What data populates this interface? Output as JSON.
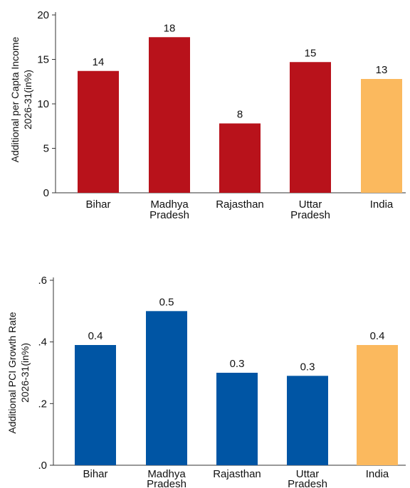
{
  "chart_data": [
    {
      "type": "bar",
      "categories": [
        "Bihar",
        "Madhya Pradesh",
        "Rajasthan",
        "Uttar Pradesh",
        "India"
      ],
      "category_lines": [
        [
          "Bihar"
        ],
        [
          "Madhya",
          "Pradesh"
        ],
        [
          "Rajasthan"
        ],
        [
          "Uttar",
          "Pradesh"
        ],
        [
          "India"
        ]
      ],
      "values": [
        14,
        18,
        8,
        15,
        13
      ],
      "exact_values": [
        13.7,
        17.5,
        7.8,
        14.7,
        12.8
      ],
      "value_labels": [
        "14",
        "18",
        "8",
        "15",
        "13"
      ],
      "ylabel_lines": [
        "Additional per Capta Income",
        "2026-31(in%)"
      ],
      "ylim": [
        0,
        20
      ],
      "yticks": [
        0,
        5,
        10,
        15,
        20
      ],
      "ytick_labels": [
        "0",
        "5",
        "10",
        "15",
        "20"
      ],
      "bar_colors": [
        "#b8121b",
        "#b8121b",
        "#b8121b",
        "#b8121b",
        "#fbb95e"
      ],
      "grid": false,
      "legend": "none"
    },
    {
      "type": "bar",
      "categories": [
        "Bihar",
        "Madhya Pradesh",
        "Rajasthan",
        "Uttar Pradesh",
        "India"
      ],
      "category_lines": [
        [
          "Bihar"
        ],
        [
          "Madhya",
          "Pradesh"
        ],
        [
          "Rajasthan"
        ],
        [
          "Uttar",
          "Pradesh"
        ],
        [
          "India"
        ]
      ],
      "values": [
        0.4,
        0.5,
        0.3,
        0.3,
        0.4
      ],
      "exact_values": [
        0.39,
        0.5,
        0.3,
        0.29,
        0.39
      ],
      "value_labels": [
        "0.4",
        "0.5",
        "0.3",
        "0.3",
        "0.4"
      ],
      "ylabel_lines": [
        "Additional PCI Growth Rate",
        "2026-31(in%)"
      ],
      "ylim": [
        0,
        0.6
      ],
      "yticks": [
        0,
        0.2,
        0.4,
        0.6
      ],
      "ytick_labels": [
        ".0",
        ".2",
        ".4",
        ".6"
      ],
      "bar_colors": [
        "#0055a4",
        "#0055a4",
        "#0055a4",
        "#0055a4",
        "#fbb95e"
      ],
      "grid": false,
      "legend": "none"
    }
  ]
}
